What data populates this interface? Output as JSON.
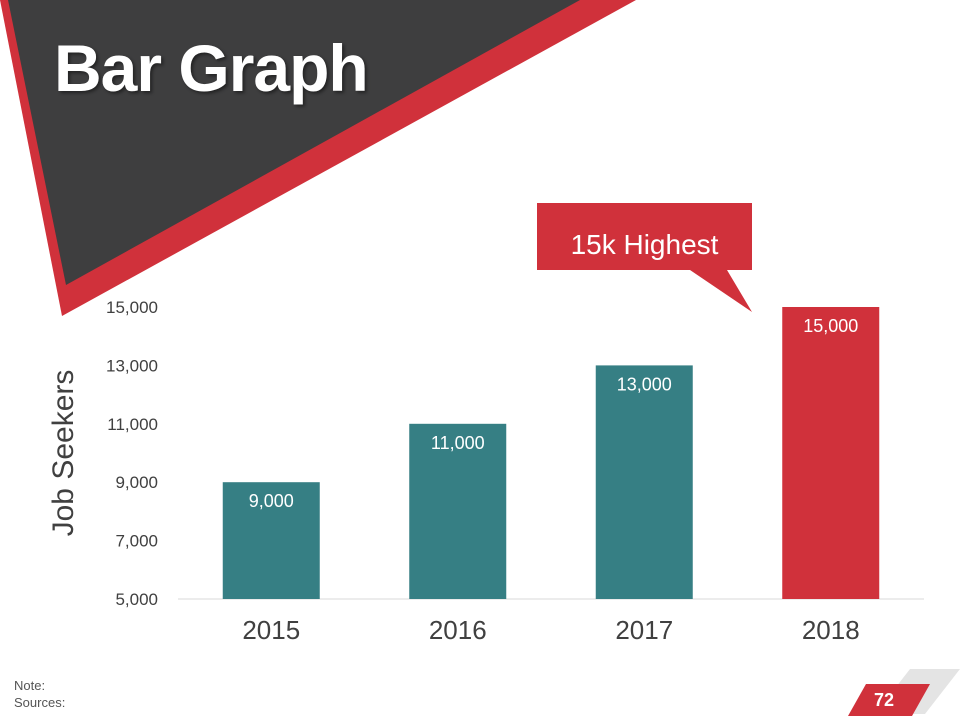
{
  "title": "Bar Graph",
  "callout": "15k Highest",
  "notes": {
    "note": "Note:",
    "sources": "Sources:"
  },
  "page_number": "72",
  "colors": {
    "bar": "#367F84",
    "highlight": "#D0313B",
    "dark": "#3E3E3F",
    "accent": "#D0313B"
  },
  "chart_data": {
    "type": "bar",
    "title": "",
    "xlabel": "",
    "ylabel": "Job Seekers",
    "categories": [
      "2015",
      "2016",
      "2017",
      "2018"
    ],
    "values": [
      9000,
      11000,
      13000,
      15000
    ],
    "value_labels": [
      "9,000",
      "11,000",
      "13,000",
      "15,000"
    ],
    "highlight_index": 3,
    "ylim": [
      5000,
      15000
    ],
    "yticks": [
      5000,
      7000,
      9000,
      11000,
      13000,
      15000
    ],
    "ytick_labels": [
      "5,000",
      "7,000",
      "9,000",
      "11,000",
      "13,000",
      "15,000"
    ],
    "grid": false
  }
}
